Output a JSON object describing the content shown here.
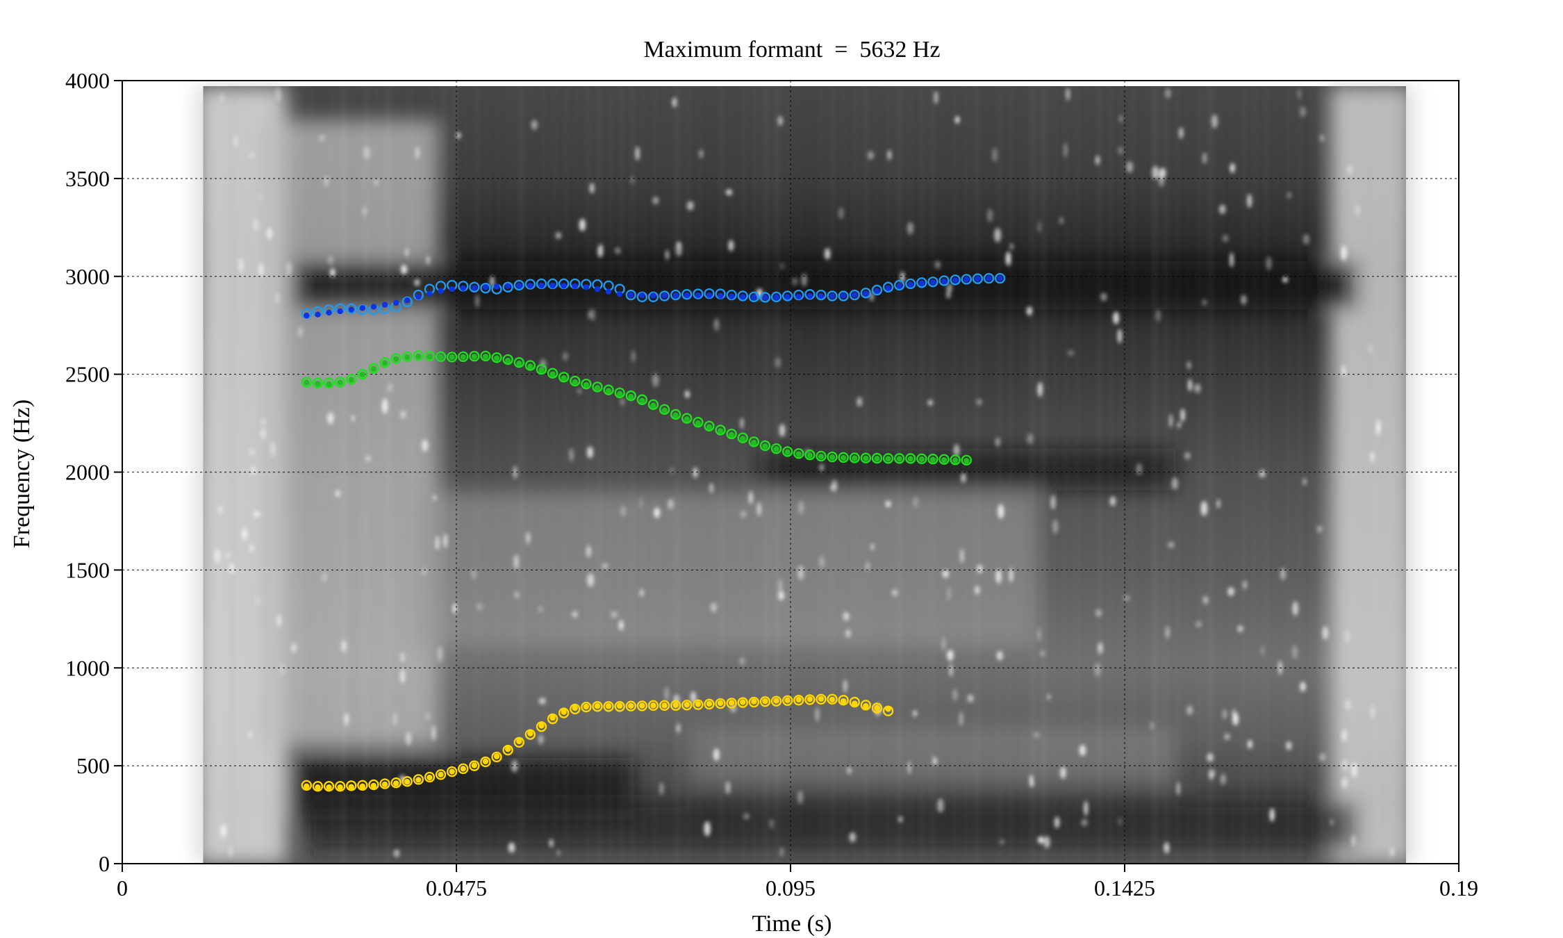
{
  "chart_data": {
    "type": "scatter",
    "title": "Maximum formant  =  5632 Hz",
    "xlabel": "Time (s)",
    "ylabel": "Frequency (Hz)",
    "xlim": [
      0,
      0.19
    ],
    "ylim": [
      0,
      4000
    ],
    "x_ticks": [
      {
        "value": 0,
        "label": "0"
      },
      {
        "value": 0.0475,
        "label": "0.0475"
      },
      {
        "value": 0.095,
        "label": "0.095"
      },
      {
        "value": 0.1425,
        "label": "0.1425"
      },
      {
        "value": 0.19,
        "label": "0.19"
      }
    ],
    "y_ticks": [
      {
        "value": 0,
        "label": "0"
      },
      {
        "value": 500,
        "label": "500"
      },
      {
        "value": 1000,
        "label": "1000"
      },
      {
        "value": 1500,
        "label": "1500"
      },
      {
        "value": 2000,
        "label": "2000"
      },
      {
        "value": 2500,
        "label": "2500"
      },
      {
        "value": 3000,
        "label": "3000"
      },
      {
        "value": 3500,
        "label": "3500"
      },
      {
        "value": 4000,
        "label": "4000"
      }
    ],
    "grid": true,
    "background": "spectrogram",
    "spectrogram_extent": {
      "t_start": 0.0115,
      "t_end": 0.1825
    },
    "x_start": 0.0262,
    "x_step": 0.00159,
    "series": [
      {
        "color": "#FFD700",
        "style": "open-circle",
        "values": [
          400,
          395,
          395,
          395,
          398,
          400,
          403,
          408,
          413,
          420,
          430,
          442,
          455,
          470,
          485,
          500,
          520,
          545,
          580,
          620,
          660,
          700,
          740,
          770,
          790,
          800,
          803,
          803,
          803,
          805,
          806,
          808,
          808,
          808,
          810,
          812,
          815,
          818,
          820,
          823,
          825,
          828,
          830,
          833,
          835,
          838,
          840,
          840,
          835,
          825,
          810,
          795,
          780
        ]
      },
      {
        "color": "#FFD700",
        "style": "filled-dot",
        "values": [
          395,
          390,
          390,
          390,
          392,
          395,
          398,
          405,
          410,
          418,
          428,
          440,
          455,
          470,
          485,
          502,
          522,
          548,
          585,
          625,
          665,
          705,
          745,
          775,
          795,
          802,
          805,
          805,
          806,
          806,
          807,
          808,
          808,
          810,
          812,
          815,
          817,
          820,
          822,
          825,
          828,
          830,
          832,
          835,
          838,
          840,
          842,
          838,
          830,
          818,
          805,
          795,
          790
        ]
      },
      {
        "color": "#22DD22",
        "style": "open-circle",
        "values": [
          2460,
          2455,
          2455,
          2460,
          2475,
          2500,
          2530,
          2560,
          2580,
          2590,
          2595,
          2593,
          2590,
          2588,
          2590,
          2592,
          2593,
          2585,
          2575,
          2560,
          2545,
          2525,
          2505,
          2485,
          2465,
          2450,
          2435,
          2420,
          2405,
          2390,
          2370,
          2345,
          2320,
          2295,
          2275,
          2255,
          2235,
          2215,
          2195,
          2175,
          2155,
          2135,
          2120,
          2105,
          2095,
          2088,
          2082,
          2078,
          2075,
          2073,
          2072,
          2071,
          2070,
          2070,
          2070,
          2068,
          2067,
          2065,
          2063,
          2061
        ]
      },
      {
        "color": "#22BB22",
        "style": "filled-dot",
        "values": [
          2458,
          2452,
          2450,
          2458,
          2472,
          2498,
          2528,
          2558,
          2578,
          2588,
          2592,
          2590,
          2588,
          2587,
          2588,
          2590,
          2590,
          2582,
          2570,
          2555,
          2540,
          2520,
          2500,
          2480,
          2460,
          2445,
          2430,
          2415,
          2400,
          2385,
          2365,
          2340,
          2315,
          2290,
          2270,
          2250,
          2230,
          2210,
          2190,
          2170,
          2150,
          2132,
          2118,
          2102,
          2092,
          2085,
          2080,
          2076,
          2073,
          2071,
          2070,
          2069,
          2068,
          2068,
          2068,
          2066,
          2064,
          2062,
          2060,
          2058
        ]
      },
      {
        "color": "#2299EE",
        "style": "open-circle",
        "values": [
          2810,
          2820,
          2830,
          2835,
          2835,
          2830,
          2830,
          2835,
          2845,
          2870,
          2905,
          2935,
          2950,
          2955,
          2950,
          2945,
          2940,
          2935,
          2945,
          2955,
          2960,
          2962,
          2962,
          2962,
          2962,
          2960,
          2958,
          2952,
          2935,
          2905,
          2895,
          2895,
          2900,
          2905,
          2908,
          2910,
          2912,
          2910,
          2905,
          2900,
          2895,
          2893,
          2895,
          2900,
          2905,
          2908,
          2905,
          2900,
          2900,
          2905,
          2915,
          2930,
          2945,
          2955,
          2962,
          2968,
          2972,
          2978,
          2982,
          2985,
          2988,
          2990,
          2990
        ]
      },
      {
        "color": "#1133DD",
        "style": "filled-dot",
        "values": [
          2800,
          2805,
          2815,
          2822,
          2830,
          2838,
          2845,
          2855,
          2865,
          2878,
          2895,
          2912,
          2925,
          2935,
          2940,
          2942,
          2945,
          2948,
          2950,
          2952,
          2952,
          2953,
          2953,
          2952,
          2950,
          2945,
          2935,
          2922,
          2910,
          2905,
          2903,
          2902,
          2902,
          2902,
          2903,
          2903,
          2903,
          2900,
          2898,
          2895,
          2893,
          2892,
          2893,
          2895,
          2897,
          2900,
          2900,
          2900,
          2902,
          2905,
          2912,
          2925,
          2940,
          2950,
          2958,
          2965,
          2970,
          2975,
          2980,
          2985,
          2988,
          2990,
          2990
        ]
      }
    ]
  }
}
